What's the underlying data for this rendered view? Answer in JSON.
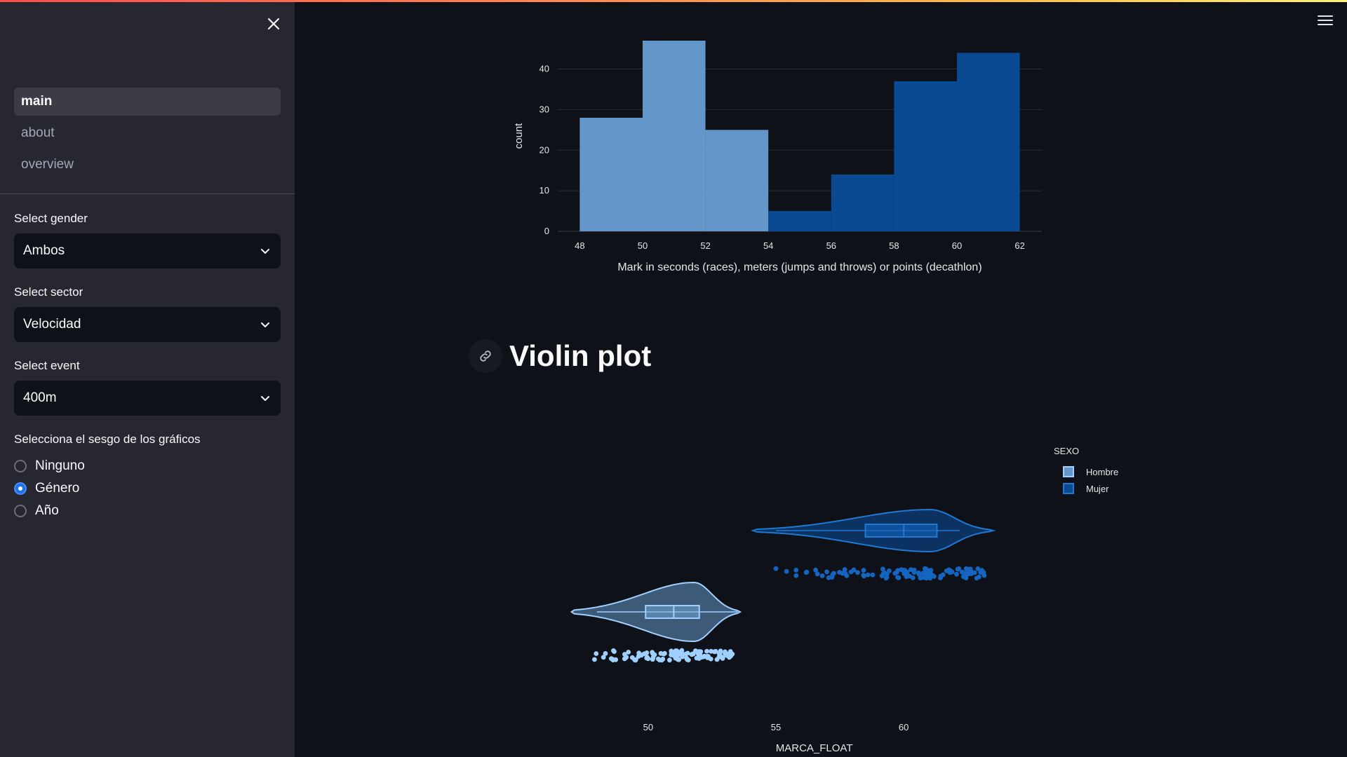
{
  "sidebar": {
    "nav": [
      {
        "label": "main",
        "active": true
      },
      {
        "label": "about",
        "active": false
      },
      {
        "label": "overview",
        "active": false
      }
    ],
    "gender": {
      "label": "Select gender",
      "value": "Ambos"
    },
    "sector": {
      "label": "Select sector",
      "value": "Velocidad"
    },
    "event": {
      "label": "Select event",
      "value": "400m"
    },
    "bias": {
      "label": "Selecciona el sesgo de los gráficos",
      "options": [
        {
          "label": "Ninguno",
          "checked": false
        },
        {
          "label": "Género",
          "checked": true
        },
        {
          "label": "Año",
          "checked": false
        }
      ]
    }
  },
  "icons": {
    "close": "close-icon",
    "menu": "hamburger-menu-icon",
    "chevron": "chevron-down-icon",
    "link": "link-icon"
  },
  "colors": {
    "hombre": "#6497c9",
    "mujer": "#0a4a93",
    "hombre_violin": "#9fd0ff",
    "mujer_violin": "#1f78d1",
    "mujer_points": "#1565c0"
  },
  "violin_section": {
    "title": "Violin plot"
  },
  "chart_data": [
    {
      "type": "bar",
      "subtype": "histogram",
      "bins": [
        {
          "x0": 48,
          "x1": 50,
          "count": 28,
          "series": "Hombre"
        },
        {
          "x0": 50,
          "x1": 52,
          "count": 47,
          "series": "Hombre"
        },
        {
          "x0": 52,
          "x1": 54,
          "count": 25,
          "series": "Hombre"
        },
        {
          "x0": 54,
          "x1": 56,
          "count": 5,
          "series": "Mujer"
        },
        {
          "x0": 56,
          "x1": 58,
          "count": 14,
          "series": "Mujer"
        },
        {
          "x0": 58,
          "x1": 60,
          "count": 37,
          "series": "Mujer"
        },
        {
          "x0": 60,
          "x1": 62,
          "count": 44,
          "series": "Mujer"
        }
      ],
      "xlabel": "Mark in seconds (races), meters (jumps and throws) or points (decathlon)",
      "ylabel": "count",
      "xticks": [
        "48",
        "50",
        "52",
        "54",
        "56",
        "58",
        "60",
        "62"
      ],
      "yticks": [
        "0",
        "10",
        "20",
        "30",
        "40"
      ],
      "xlim": [
        47.3,
        62.7
      ],
      "ylim": [
        0,
        47
      ],
      "grid": true
    },
    {
      "type": "violin",
      "xlabel": "MARCA_FLOAT",
      "xticks": [
        "50",
        "55",
        "60"
      ],
      "xlim": [
        45.5,
        64.5
      ],
      "legend_title": "SEXO",
      "legend_position": "top-right",
      "series": [
        {
          "name": "Hombre",
          "min": 48.0,
          "q1": 49.9,
          "median": 51.0,
          "q3": 52.0,
          "max": 53.5,
          "kde_min": 47.0,
          "kde_max": 53.6
        },
        {
          "name": "Mujer",
          "min": 55.0,
          "q1": 58.5,
          "median": 60.0,
          "q3": 61.3,
          "max": 62.2,
          "kde_min": 54.1,
          "kde_max": 63.5
        }
      ]
    }
  ]
}
